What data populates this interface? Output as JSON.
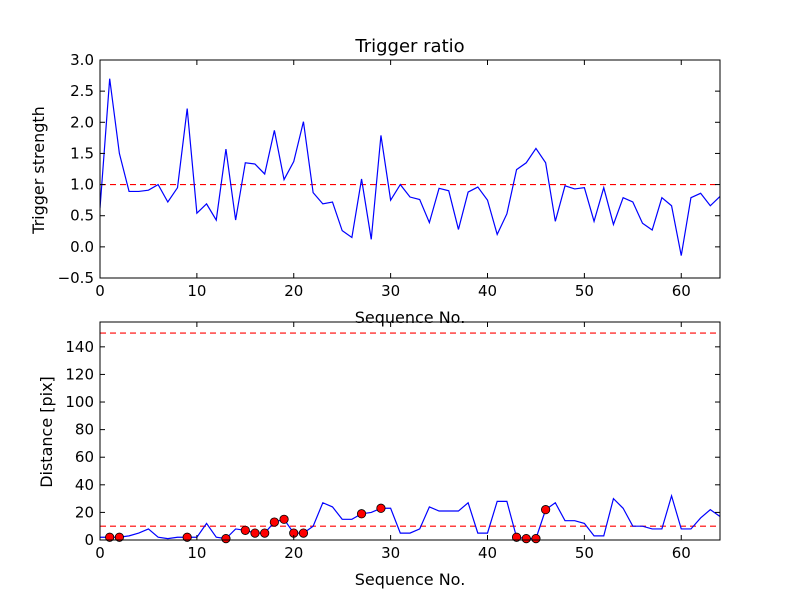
{
  "chart_data": [
    {
      "type": "line",
      "title": "Trigger ratio",
      "xlabel": "Sequence No.",
      "ylabel": "Trigger strength",
      "xlim": [
        0,
        64
      ],
      "ylim": [
        -0.5,
        3.0
      ],
      "xticks": [
        0,
        10,
        20,
        30,
        40,
        50,
        60
      ],
      "yticks": [
        -0.5,
        0.0,
        0.5,
        1.0,
        1.5,
        2.0,
        2.5,
        3.0
      ],
      "ytick_labels": [
        "−0.5",
        "0.0",
        "0.5",
        "1.0",
        "1.5",
        "2.0",
        "2.5",
        "3.0"
      ],
      "series": [
        {
          "name": "trigger strength",
          "color": "#0000ff",
          "x": [
            0,
            1,
            2,
            3,
            4,
            5,
            6,
            7,
            8,
            9,
            10,
            11,
            12,
            13,
            14,
            15,
            16,
            17,
            18,
            19,
            20,
            21,
            22,
            23,
            24,
            25,
            26,
            27,
            28,
            29,
            30,
            31,
            32,
            33,
            34,
            35,
            36,
            37,
            38,
            39,
            40,
            41,
            42,
            43,
            44,
            45,
            46,
            47,
            48,
            49,
            50,
            51,
            52,
            53,
            54,
            55,
            56,
            57,
            58,
            59,
            60,
            61,
            62,
            63,
            64
          ],
          "y": [
            0.62,
            2.7,
            1.5,
            0.89,
            0.89,
            0.91,
            1.0,
            0.72,
            0.95,
            2.22,
            0.54,
            0.69,
            0.43,
            1.57,
            0.43,
            1.35,
            1.33,
            1.17,
            1.87,
            1.08,
            1.37,
            2.01,
            0.87,
            0.69,
            0.72,
            0.26,
            0.15,
            1.09,
            0.12,
            1.79,
            0.75,
            1.0,
            0.8,
            0.76,
            0.39,
            0.94,
            0.9,
            0.28,
            0.88,
            0.96,
            0.75,
            0.2,
            0.53,
            1.24,
            1.35,
            1.58,
            1.35,
            0.41,
            0.98,
            0.93,
            0.95,
            0.41,
            0.95,
            0.36,
            0.79,
            0.72,
            0.38,
            0.27,
            0.79,
            0.66,
            -0.14,
            0.79,
            0.86,
            0.66,
            0.81
          ]
        }
      ],
      "reference_lines": [
        {
          "y": 1.0,
          "color": "#ff0000",
          "style": "dashed"
        }
      ]
    },
    {
      "type": "line",
      "title": "",
      "xlabel": "Sequence No.",
      "ylabel": "Distance [pix]",
      "xlim": [
        0,
        64
      ],
      "ylim": [
        0,
        158
      ],
      "xticks": [
        0,
        10,
        20,
        30,
        40,
        50,
        60
      ],
      "yticks": [
        0,
        20,
        40,
        60,
        80,
        100,
        120,
        140
      ],
      "ytick_labels": [
        "0",
        "20",
        "40",
        "60",
        "80",
        "100",
        "120",
        "140"
      ],
      "series": [
        {
          "name": "distance",
          "color": "#0000ff",
          "x": [
            0,
            1,
            2,
            3,
            4,
            5,
            6,
            7,
            8,
            9,
            10,
            11,
            12,
            13,
            14,
            15,
            16,
            17,
            18,
            19,
            20,
            21,
            22,
            23,
            24,
            25,
            26,
            27,
            28,
            29,
            30,
            31,
            32,
            33,
            34,
            35,
            36,
            37,
            38,
            39,
            40,
            41,
            42,
            43,
            44,
            45,
            46,
            47,
            48,
            49,
            50,
            51,
            52,
            53,
            54,
            55,
            56,
            57,
            58,
            59,
            60,
            61,
            62,
            63,
            64
          ],
          "y": [
            2,
            2,
            2,
            3,
            5,
            8,
            2,
            1,
            2,
            2,
            2,
            12,
            2,
            1,
            8,
            7,
            5,
            5,
            13,
            15,
            5,
            5,
            10,
            27,
            24,
            15,
            15,
            19,
            20,
            23,
            23,
            5,
            5,
            8,
            24,
            21,
            21,
            21,
            27,
            5,
            5,
            28,
            28,
            2,
            1,
            1,
            22,
            27,
            14,
            14,
            12,
            3,
            3,
            30,
            23,
            10,
            10,
            8,
            8,
            32,
            8,
            8,
            16,
            22,
            17
          ],
          "markers": {
            "color": "#ff0000",
            "x": [
              1,
              2,
              9,
              13,
              15,
              16,
              17,
              18,
              19,
              20,
              21,
              27,
              29,
              43,
              44,
              45,
              46
            ],
            "y": [
              2,
              2,
              2,
              1,
              7,
              5,
              5,
              13,
              15,
              5,
              5,
              19,
              23,
              2,
              1,
              1,
              22
            ]
          }
        }
      ],
      "reference_lines": [
        {
          "y": 10,
          "color": "#ff0000",
          "style": "dashed"
        },
        {
          "y": 150,
          "color": "#ff0000",
          "style": "dashed"
        }
      ]
    }
  ]
}
